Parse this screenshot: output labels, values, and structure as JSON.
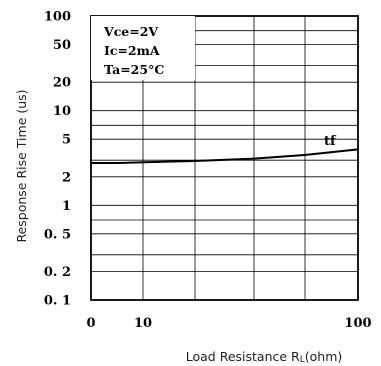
{
  "chart_data": {
    "type": "line",
    "xlabel_main": "Load Resistance R",
    "xlabel_sub": "L",
    "xlabel_end": "(ohm)",
    "ylabel": "Response Rise Time (us)",
    "x_tick_labels": [
      "0",
      "10",
      "100"
    ],
    "y_tick_labels": [
      "100",
      "50",
      "20",
      "10",
      "5",
      "2",
      "1",
      "0. 5",
      "0. 2",
      "0. 1"
    ],
    "annotations": [
      "Vce=2V",
      "Ic=2mA",
      "Ta=25°C"
    ],
    "ylim": [
      0.1,
      100
    ],
    "yscale": "log",
    "grid": true,
    "series": [
      {
        "name": "tf",
        "x": [
          0,
          10,
          20,
          40,
          60,
          80,
          100
        ],
        "y": [
          2.8,
          2.8,
          2.85,
          2.95,
          3.1,
          3.4,
          3.9
        ]
      }
    ]
  }
}
